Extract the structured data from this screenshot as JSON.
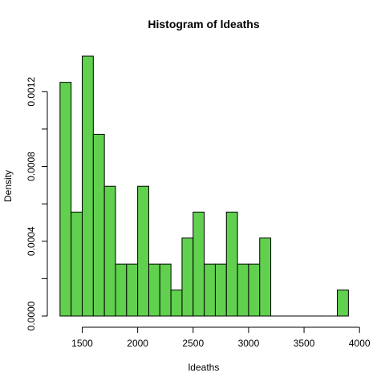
{
  "chart_data": {
    "type": "bar",
    "title": "Histogram of ldeaths",
    "xlabel": "ldeaths",
    "ylabel": "Density",
    "bin_width": 100,
    "bin_start": 1300,
    "densities": [
      0.00125,
      0.000556,
      0.00139,
      0.000972,
      0.000694,
      0.000278,
      0.000278,
      0.000694,
      0.000278,
      0.000278,
      0.000139,
      0.000417,
      0.000556,
      0.000278,
      0.000278,
      0.000556,
      0.000278,
      0.000278,
      0.000417,
      0,
      0,
      0,
      0,
      0,
      0,
      0.000139
    ],
    "xlim": [
      1300,
      3900
    ],
    "ylim": [
      0,
      0.00139
    ],
    "xticks": [
      1500,
      2000,
      2500,
      3000,
      3500,
      4000
    ],
    "yticks": [
      0,
      0.0002,
      0.0004,
      0.0006,
      0.0008,
      0.001,
      0.0012
    ],
    "ytick_labels": [
      "0.0000",
      "",
      "0.0004",
      "",
      "0.0008",
      "",
      "0.0012"
    ],
    "bar_fill": "#61d04f",
    "bar_stroke": "#000000"
  }
}
